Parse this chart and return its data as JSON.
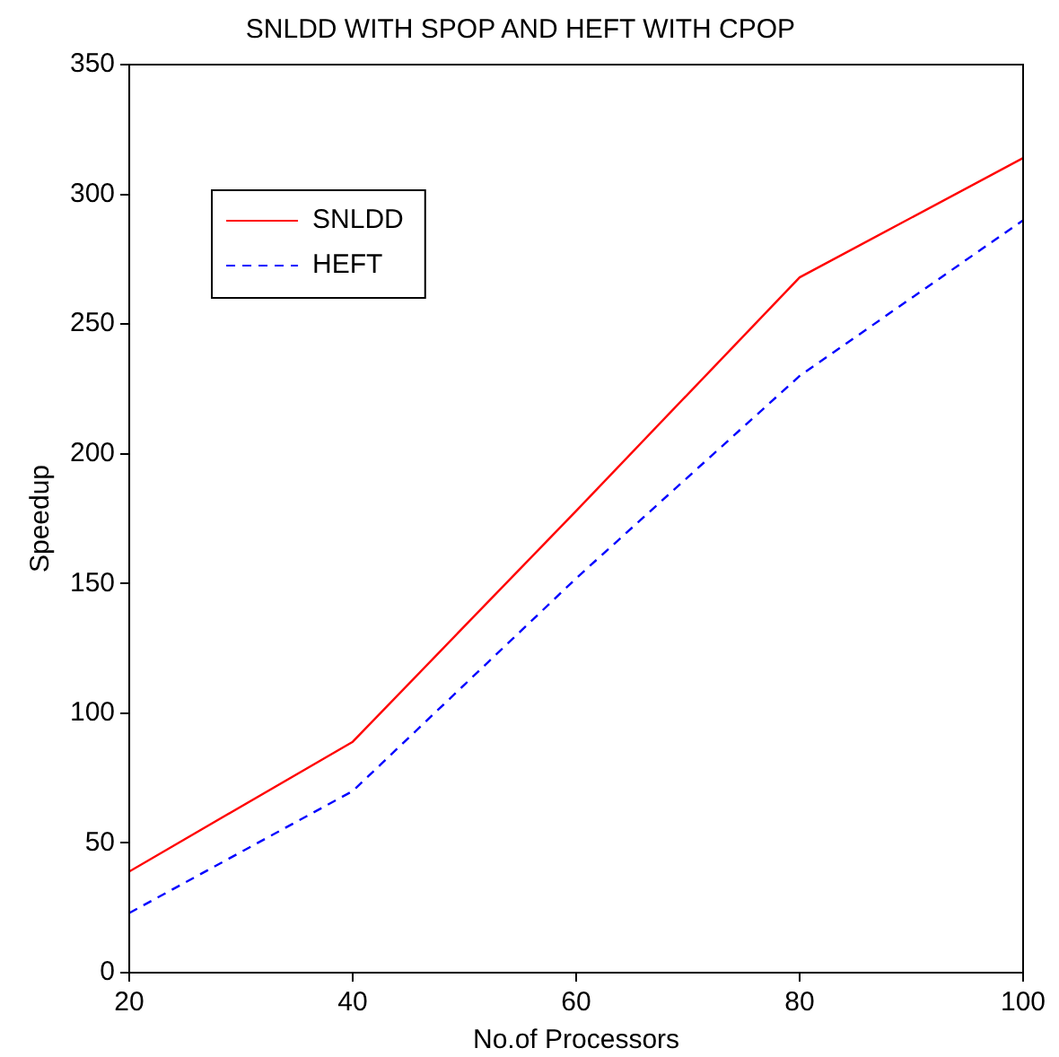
{
  "chart_data": {
    "type": "line",
    "title": "SNLDD WITH SPOP AND HEFT WITH CPOP",
    "xlabel": "No.of Processors",
    "ylabel": "Speedup",
    "x": [
      20,
      40,
      60,
      80,
      100
    ],
    "series": [
      {
        "name": "SNLDD",
        "color": "#ff0000",
        "values": [
          39,
          89,
          178,
          268,
          314
        ],
        "line_style": "solid"
      },
      {
        "name": "HEFT",
        "color": "#0000ff",
        "values": [
          23,
          70,
          152,
          230,
          290
        ],
        "line_style": "dashed"
      }
    ],
    "xlim": [
      20,
      100
    ],
    "xticks": [
      20,
      40,
      60,
      80,
      100
    ],
    "ylim": [
      0,
      350
    ],
    "yticks": [
      0,
      50,
      100,
      150,
      200,
      250,
      300,
      350
    ],
    "grid": false,
    "legend": "top left",
    "marker": "none"
  }
}
